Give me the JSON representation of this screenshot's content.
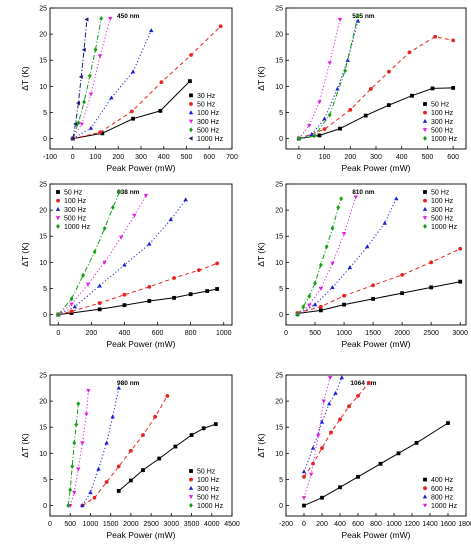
{
  "chart_data": [
    {
      "type": "scatter",
      "title": "450 nm",
      "xlabel": "Peak Power (mW)",
      "ylabel": "ΔT (K)",
      "xlim": [
        -100,
        700
      ],
      "ylim": [
        -2,
        25
      ],
      "xticks": [
        -100,
        0,
        100,
        200,
        300,
        400,
        500,
        600,
        700
      ],
      "yticks": [
        0,
        5,
        10,
        15,
        20,
        25
      ],
      "legend": "bottom-right",
      "series": [
        {
          "name": "30  Hz",
          "color": "#000000",
          "marker": "square",
          "line": "solid",
          "x": [
            0,
            130,
            265,
            385,
            515
          ],
          "y": [
            0,
            1.0,
            3.8,
            5.3,
            11.0
          ]
        },
        {
          "name": "50  Hz",
          "color": "#e8231f",
          "marker": "circle",
          "line": "dash",
          "x": [
            0,
            120,
            260,
            390,
            520,
            650
          ],
          "y": [
            0,
            1.2,
            5.2,
            10.8,
            16.0,
            21.5
          ]
        },
        {
          "name": "100  Hz",
          "color": "#1a1fd6",
          "marker": "triangle-up",
          "line": "dot",
          "x": [
            0,
            80,
            170,
            265,
            345
          ],
          "y": [
            0,
            2.0,
            7.8,
            12.8,
            20.7
          ]
        },
        {
          "name": "300  Hz",
          "color": "#e020e0",
          "marker": "triangle-down",
          "line": "dot",
          "x": [
            0,
            40,
            80,
            120,
            165
          ],
          "y": [
            0,
            2.8,
            8.5,
            15.8,
            23.0
          ]
        },
        {
          "name": "500  Hz",
          "color": "#13a013",
          "marker": "diamond",
          "line": "dashdot",
          "x": [
            0,
            25,
            50,
            75,
            100,
            125
          ],
          "y": [
            0,
            3.0,
            7.0,
            12.0,
            17.0,
            23.0
          ]
        },
        {
          "name": "1000  Hz",
          "color": "#1c1c7a",
          "marker": "triangle-left",
          "line": "dashdot",
          "x": [
            0,
            12,
            25,
            37,
            50,
            62
          ],
          "y": [
            0,
            2.8,
            6.8,
            11.8,
            17.0,
            22.8
          ]
        }
      ]
    },
    {
      "type": "scatter",
      "title": "525 nm",
      "xlabel": "Peak Power (mW)",
      "ylabel": "ΔT (K)",
      "xlim": [
        -50,
        650
      ],
      "ylim": [
        -2,
        25
      ],
      "xticks": [
        0,
        100,
        200,
        300,
        400,
        500,
        600
      ],
      "yticks": [
        0,
        5,
        10,
        15,
        20,
        25
      ],
      "legend": "bottom-right",
      "series": [
        {
          "name": "50  Hz",
          "color": "#000000",
          "marker": "square",
          "line": "solid",
          "x": [
            0,
            80,
            160,
            260,
            350,
            440,
            520,
            600
          ],
          "y": [
            0,
            0.6,
            1.9,
            4.4,
            6.4,
            8.2,
            9.6,
            9.7
          ]
        },
        {
          "name": "100  Hz",
          "color": "#e8231f",
          "marker": "circle",
          "line": "dash",
          "x": [
            0,
            100,
            200,
            280,
            350,
            430,
            530,
            600
          ],
          "y": [
            0,
            1.8,
            5.5,
            9.5,
            12.8,
            16.5,
            19.5,
            18.8
          ]
        },
        {
          "name": "300  Hz",
          "color": "#1a1fd6",
          "marker": "triangle-up",
          "line": "dot",
          "x": [
            0,
            50,
            100,
            150,
            190,
            230
          ],
          "y": [
            0,
            0.8,
            3.8,
            9.5,
            15.0,
            22.5
          ]
        },
        {
          "name": "500  Hz",
          "color": "#e020e0",
          "marker": "triangle-down",
          "line": "dot",
          "x": [
            0,
            40,
            80,
            120,
            160
          ],
          "y": [
            0,
            2.5,
            7.0,
            14.5,
            22.8
          ]
        },
        {
          "name": "1000  Hz",
          "color": "#13a013",
          "marker": "diamond",
          "line": "dashdot",
          "x": [
            0,
            60,
            120,
            180,
            230
          ],
          "y": [
            0,
            0.5,
            4.5,
            13.0,
            23.5
          ]
        }
      ]
    },
    {
      "type": "scatter",
      "title": "638 nm",
      "xlabel": "Peak Power (mW)",
      "ylabel": "ΔT (K)",
      "xlim": [
        -50,
        1050
      ],
      "ylim": [
        -2,
        25
      ],
      "xticks": [
        0,
        200,
        400,
        600,
        800,
        1000
      ],
      "yticks": [
        0,
        5,
        10,
        15,
        20,
        25
      ],
      "legend": "top-left",
      "series": [
        {
          "name": "50  Hz",
          "color": "#000000",
          "marker": "square",
          "line": "solid",
          "x": [
            0,
            80,
            250,
            400,
            550,
            700,
            800,
            900,
            960
          ],
          "y": [
            0,
            0.3,
            1.0,
            1.8,
            2.6,
            3.2,
            3.9,
            4.5,
            4.9
          ]
        },
        {
          "name": "100  Hz",
          "color": "#e8231f",
          "marker": "circle",
          "line": "dash",
          "x": [
            0,
            80,
            250,
            400,
            550,
            700,
            850,
            960
          ],
          "y": [
            0,
            0.6,
            2.2,
            3.8,
            5.3,
            7.0,
            8.5,
            9.8
          ]
        },
        {
          "name": "300  Hz",
          "color": "#1a1fd6",
          "marker": "triangle-up",
          "line": "dot",
          "x": [
            0,
            100,
            250,
            400,
            550,
            680,
            770
          ],
          "y": [
            0,
            1.5,
            5.5,
            9.5,
            13.5,
            18.2,
            22.0
          ]
        },
        {
          "name": "500  Hz",
          "color": "#e020e0",
          "marker": "triangle-down",
          "line": "dot",
          "x": [
            0,
            80,
            180,
            280,
            380,
            460,
            530
          ],
          "y": [
            0,
            2.0,
            5.8,
            10.0,
            14.8,
            19.0,
            22.8
          ]
        },
        {
          "name": "1000  Hz",
          "color": "#13a013",
          "marker": "diamond",
          "line": "dashdot",
          "x": [
            0,
            80,
            150,
            220,
            280,
            330,
            370
          ],
          "y": [
            0,
            3.0,
            7.5,
            12.0,
            16.5,
            20.5,
            23.5
          ]
        }
      ]
    },
    {
      "type": "scatter",
      "title": "810 nm",
      "xlabel": "Peak Power (mW)",
      "ylabel": "ΔT (K)",
      "xlim": [
        0,
        3100
      ],
      "ylim": [
        -2,
        25
      ],
      "xticks": [
        0,
        500,
        1000,
        1500,
        2000,
        2500,
        3000
      ],
      "yticks": [
        0,
        5,
        10,
        15,
        20,
        25
      ],
      "legend": "top-right",
      "series": [
        {
          "name": "50  Hz",
          "color": "#000000",
          "marker": "square",
          "line": "solid",
          "x": [
            200,
            600,
            1000,
            1500,
            2000,
            2500,
            3000
          ],
          "y": [
            0.2,
            0.8,
            1.9,
            3.0,
            4.1,
            5.2,
            6.3
          ]
        },
        {
          "name": "100  Hz",
          "color": "#e8231f",
          "marker": "circle",
          "line": "dash",
          "x": [
            200,
            600,
            1000,
            1500,
            2000,
            2500,
            3000
          ],
          "y": [
            0.3,
            1.5,
            3.6,
            5.6,
            7.6,
            10.0,
            12.6
          ]
        },
        {
          "name": "300  Hz",
          "color": "#1a1fd6",
          "marker": "triangle-up",
          "line": "dot",
          "x": [
            200,
            500,
            800,
            1100,
            1400,
            1700,
            1900
          ],
          "y": [
            0,
            1.9,
            5.2,
            9.0,
            13.0,
            17.5,
            22.2
          ]
        },
        {
          "name": "500  Hz",
          "color": "#e020e0",
          "marker": "triangle-down",
          "line": "dot",
          "x": [
            200,
            400,
            600,
            800,
            1000,
            1200
          ],
          "y": [
            0,
            1.8,
            5.0,
            9.8,
            15.5,
            22.5
          ]
        },
        {
          "name": "1000  Hz",
          "color": "#13a013",
          "marker": "diamond",
          "line": "dashdot",
          "x": [
            200,
            300,
            400,
            500,
            600,
            700,
            800,
            900,
            950
          ],
          "y": [
            0,
            1.5,
            3.5,
            6.0,
            9.5,
            13.0,
            16.5,
            20.5,
            22.2
          ]
        }
      ]
    },
    {
      "type": "scatter",
      "title": "980 nm",
      "xlabel": "Peak Power (mW)",
      "ylabel": "ΔT (K)",
      "xlim": [
        0,
        4500
      ],
      "ylim": [
        -2,
        25
      ],
      "xticks": [
        0,
        500,
        1000,
        1500,
        2000,
        2500,
        3000,
        3500,
        4000,
        4500
      ],
      "yticks": [
        0,
        5,
        10,
        15,
        20,
        25
      ],
      "legend": "bottom-right",
      "series": [
        {
          "name": "50  Hz",
          "color": "#000000",
          "marker": "square",
          "line": "solid",
          "x": [
            1700,
            2000,
            2300,
            2700,
            3100,
            3500,
            3800,
            4100
          ],
          "y": [
            2.8,
            4.8,
            6.8,
            9.0,
            11.3,
            13.5,
            14.8,
            15.6
          ]
        },
        {
          "name": "100  Hz",
          "color": "#e8231f",
          "marker": "circle",
          "line": "dash",
          "x": [
            800,
            1100,
            1400,
            1700,
            2000,
            2300,
            2600,
            2900
          ],
          "y": [
            0,
            1.5,
            4.5,
            7.5,
            10.5,
            13.5,
            17.0,
            21.0
          ]
        },
        {
          "name": "300  Hz",
          "color": "#1a1fd6",
          "marker": "triangle-up",
          "line": "dot",
          "x": [
            800,
            1000,
            1200,
            1400,
            1550,
            1700
          ],
          "y": [
            0,
            2.5,
            7.0,
            12.0,
            17.0,
            22.5
          ]
        },
        {
          "name": "500  Hz",
          "color": "#e020e0",
          "marker": "triangle-down",
          "line": "dot",
          "x": [
            500,
            600,
            700,
            800,
            900,
            950
          ],
          "y": [
            0,
            2.5,
            7.0,
            12.0,
            17.5,
            22.0
          ]
        },
        {
          "name": "1000  Hz",
          "color": "#13a013",
          "marker": "diamond",
          "line": "dashdot",
          "x": [
            450,
            500,
            550,
            600,
            650,
            700
          ],
          "y": [
            0,
            3.0,
            7.5,
            12.0,
            15.5,
            19.5
          ]
        }
      ]
    },
    {
      "type": "scatter",
      "title": "1064 nm",
      "xlabel": "Peak Power (mW)",
      "ylabel": "ΔT (K)",
      "xlim": [
        -200,
        1800
      ],
      "ylim": [
        -2,
        25
      ],
      "xticks": [
        -200,
        0,
        200,
        400,
        600,
        800,
        1000,
        1200,
        1400,
        1600,
        1800
      ],
      "yticks": [
        0,
        5,
        10,
        15,
        20,
        25
      ],
      "legend": "bottom-right",
      "series": [
        {
          "name": "400  Hz",
          "color": "#000000",
          "marker": "square",
          "line": "solid",
          "x": [
            0,
            200,
            400,
            600,
            850,
            1050,
            1250,
            1600
          ],
          "y": [
            0,
            1.5,
            3.5,
            5.5,
            8.0,
            10.0,
            12.0,
            15.8
          ]
        },
        {
          "name": "600  Hz",
          "color": "#e8231f",
          "marker": "circle",
          "line": "dash",
          "x": [
            0,
            100,
            200,
            300,
            400,
            500,
            600,
            720
          ],
          "y": [
            5.5,
            8.0,
            11.0,
            14.0,
            16.5,
            19.0,
            21.0,
            23.5
          ]
        },
        {
          "name": "800  Hz",
          "color": "#1a1fd6",
          "marker": "triangle-up",
          "line": "dot",
          "x": [
            0,
            100,
            200,
            280,
            350,
            420
          ],
          "y": [
            6.5,
            11.0,
            16.0,
            19.5,
            21.5,
            24.5
          ]
        },
        {
          "name": "1000  Hz",
          "color": "#e020e0",
          "marker": "triangle-down",
          "line": "dot",
          "x": [
            0,
            80,
            160,
            220,
            290
          ],
          "y": [
            1.5,
            6.0,
            13.5,
            20.0,
            24.5
          ]
        }
      ]
    }
  ]
}
